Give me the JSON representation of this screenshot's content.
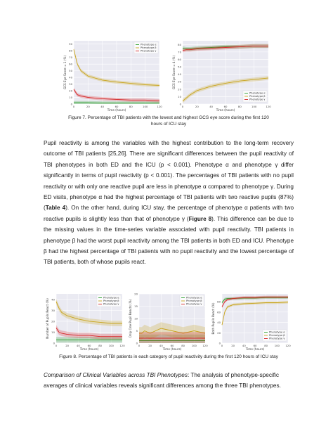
{
  "colors": {
    "alpha": "#2ca02c",
    "beta": "#c8a41c",
    "gamma": "#d62728",
    "panel_bg": "#eaeaf2",
    "grid": "#ffffff"
  },
  "fig7": {
    "caption": "Figure 7. Percentage of TBI patients with the lowest and highest GCS eye score during the first 120 hours of ICU stay",
    "left": {
      "ylabel": "GCS Eye Score = 1 (%)",
      "xlabel": "Time (hours)",
      "xticks": [
        "0",
        "20",
        "40",
        "60",
        "80",
        "100",
        "120"
      ],
      "yticks": [
        "0",
        "10",
        "20",
        "30",
        "40",
        "50",
        "60",
        "70",
        "80",
        "90"
      ],
      "legend": [
        "Phenotype α",
        "Phenotype β",
        "Phenotype γ"
      ]
    },
    "right": {
      "ylabel": "GCS Eye Score = 4 (%)",
      "xlabel": "Time (hours)",
      "xticks": [
        "0",
        "20",
        "40",
        "60",
        "80",
        "100",
        "120"
      ],
      "yticks": [
        "0",
        "10",
        "20",
        "30",
        "40",
        "50",
        "60",
        "70",
        "80"
      ],
      "legend": [
        "Phenotype α",
        "Phenotype β",
        "Phenotype γ"
      ]
    }
  },
  "para1": {
    "t1": "Pupil reactivity is among the variables with the highest contribution to the long-term recovery outcome of TBI patients [25,26]. There are significant differences between the pupil reactivity of TBI phenotypes in both ED and the ICU (p < 0.001). Phenotype α and phenotype γ differ significantly in terms of pupil reactivity (p < 0.001). The percentages of TBI patients with no pupil reactivity or with only one reactive pupil are less in phenotype α compared to phenotype γ. During ED visits, phenotype α had the highest percentage of TBI patients with two reactive pupils (87%) (",
    "table_ref": "Table 4",
    "t2": "). On the other hand, during ICU stay, the percentage of phenotype α patients with two reactive pupils is slightly less than that of phenotype γ (",
    "fig_ref": "Figure 8",
    "t3": "). This difference can be due to the missing values in the time-series variable associated with pupil reactivity. TBI patients in phenotype β had the worst pupil reactivity among the TBI patients in both ED and ICU. Phenotype β had the highest percentage of TBI patients with no pupil reactivity and the lowest percentage of TBI patients, both of whose pupils react."
  },
  "fig8": {
    "caption": "Figure 8. Percentage of TBI patients in each category of pupil reactivity during the first 120 hours of ICU stay",
    "a": {
      "ylabel": "Number of Pupils React (%)",
      "xlabel": "Time (hours)",
      "xticks": [
        "0",
        "20",
        "40",
        "60",
        "80",
        "100",
        "120"
      ],
      "yticks": [
        "0",
        "10",
        "20",
        "30",
        "40"
      ],
      "legend": [
        "Phenotype α",
        "Phenotype β",
        "Phenotype γ"
      ]
    },
    "b": {
      "ylabel": "Only One Pupil Reacts (%)",
      "xlabel": "Time (hours)",
      "xticks": [
        "0",
        "20",
        "40",
        "60",
        "80",
        "100",
        "120"
      ],
      "yticks": [
        "0",
        "5",
        "10",
        "15",
        "20"
      ],
      "legend": [
        "Phenotype α",
        "Phenotype β",
        "Phenotype γ"
      ]
    },
    "c": {
      "ylabel": "Both Pupils React (%)",
      "xlabel": "Time (hours)",
      "xticks": [
        "0",
        "20",
        "40",
        "60",
        "80",
        "100",
        "120"
      ],
      "yticks": [
        "0",
        "20",
        "40",
        "60",
        "80"
      ],
      "legend": [
        "Phenotype α",
        "Phenotype β",
        "Phenotype γ"
      ]
    }
  },
  "section": {
    "title": "Comparison of Clinical Variables across TBI Phenotypes",
    "text": ": The analysis of phenotype-specific averages of clinical variables reveals significant differences among the three TBI phenotypes."
  },
  "chart_data": [
    {
      "type": "line",
      "title": "",
      "xlabel": "Time (hours)",
      "ylabel": "GCS Eye Score = 1 (%)",
      "xlim": [
        0,
        120
      ],
      "ylim": [
        0,
        95
      ],
      "x": [
        0,
        5,
        10,
        20,
        40,
        60,
        80,
        100,
        120
      ],
      "series": [
        {
          "name": "Phenotype α",
          "values": [
            2,
            2,
            2,
            2,
            1.5,
            1.5,
            1.5,
            1.5,
            1.5
          ]
        },
        {
          "name": "Phenotype β",
          "values": [
            82,
            60,
            50,
            42,
            36,
            33,
            31,
            29,
            28
          ]
        },
        {
          "name": "Phenotype γ",
          "values": [
            22,
            14,
            12,
            10,
            8,
            7,
            6,
            6,
            5
          ]
        }
      ]
    },
    {
      "type": "line",
      "title": "",
      "xlabel": "Time (hours)",
      "ylabel": "GCS Eye Score = 4 (%)",
      "xlim": [
        0,
        120
      ],
      "ylim": [
        0,
        85
      ],
      "x": [
        0,
        5,
        10,
        20,
        40,
        60,
        80,
        100,
        120
      ],
      "series": [
        {
          "name": "Phenotype α",
          "values": [
            75,
            74,
            74,
            75,
            76,
            77,
            77,
            78,
            78
          ]
        },
        {
          "name": "Phenotype β",
          "values": [
            4,
            8,
            12,
            18,
            24,
            28,
            31,
            33,
            35
          ]
        },
        {
          "name": "Phenotype γ",
          "values": [
            72,
            73,
            73,
            74,
            75,
            76,
            77,
            78,
            78
          ]
        }
      ]
    },
    {
      "type": "line",
      "title": "",
      "xlabel": "Time (hours)",
      "ylabel": "Number of Pupils React (%)",
      "xlim": [
        0,
        120
      ],
      "ylim": [
        0,
        45
      ],
      "x": [
        0,
        5,
        10,
        20,
        40,
        60,
        80,
        100,
        120
      ],
      "series": [
        {
          "name": "Phenotype α",
          "values": [
            3,
            3,
            3,
            3,
            3,
            3,
            3,
            3,
            3
          ]
        },
        {
          "name": "Phenotype β",
          "values": [
            38,
            32,
            28,
            25,
            22,
            20,
            19,
            18,
            18
          ]
        },
        {
          "name": "Phenotype γ",
          "values": [
            14,
            10,
            9,
            8,
            7,
            7,
            6,
            6,
            6
          ]
        }
      ]
    },
    {
      "type": "line",
      "title": "",
      "xlabel": "Time (hours)",
      "ylabel": "Only One Pupil Reacts (%)",
      "xlim": [
        0,
        120
      ],
      "ylim": [
        0,
        20
      ],
      "x": [
        0,
        5,
        10,
        20,
        40,
        60,
        80,
        100,
        120
      ],
      "series": [
        {
          "name": "Phenotype α",
          "values": [
            1,
            1,
            1,
            1,
            1,
            1,
            1,
            1,
            1
          ]
        },
        {
          "name": "Phenotype β",
          "values": [
            4,
            4,
            5,
            4,
            6,
            5,
            4,
            5,
            4
          ]
        },
        {
          "name": "Phenotype γ",
          "values": [
            2,
            2,
            2,
            2,
            2,
            2,
            2,
            2,
            2
          ]
        }
      ]
    },
    {
      "type": "line",
      "title": "",
      "xlabel": "Time (hours)",
      "ylabel": "Both Pupils React (%)",
      "xlim": [
        0,
        120
      ],
      "ylim": [
        0,
        95
      ],
      "x": [
        0,
        5,
        10,
        20,
        40,
        60,
        80,
        100,
        120
      ],
      "series": [
        {
          "name": "Phenotype α",
          "values": [
            78,
            85,
            86,
            86,
            87,
            87,
            88,
            88,
            88
          ]
        },
        {
          "name": "Phenotype β",
          "values": [
            35,
            60,
            70,
            74,
            76,
            77,
            78,
            78,
            79
          ]
        },
        {
          "name": "Phenotype γ",
          "values": [
            70,
            80,
            84,
            86,
            88,
            88,
            89,
            89,
            89
          ]
        }
      ]
    }
  ]
}
